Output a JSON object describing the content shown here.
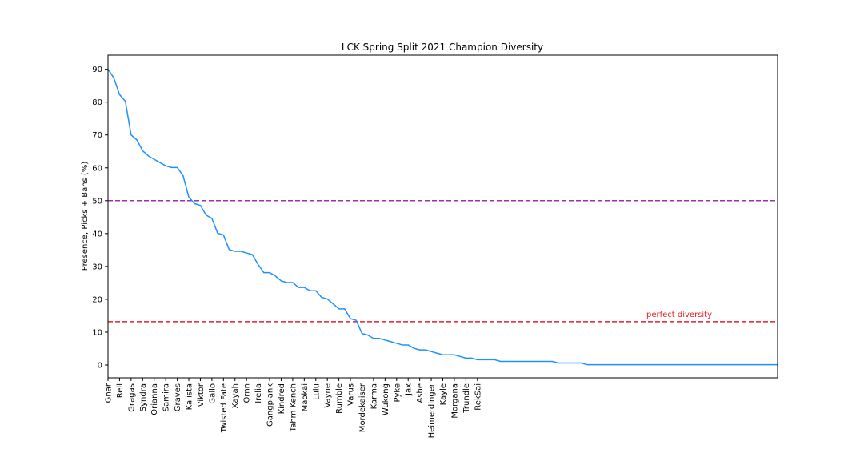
{
  "chart_data": {
    "type": "line",
    "title": "LCK Spring Split 2021 Champion Diversity",
    "xlabel": "",
    "ylabel": "Presence, Picks + Bans (%)",
    "ylim": [
      -3.9,
      94.3
    ],
    "yticks": [
      0,
      10,
      20,
      30,
      40,
      50,
      60,
      70,
      80,
      90
    ],
    "grid": false,
    "x_tick_labels": [
      "Gnar",
      "Rell",
      "Gragas",
      "Syndra",
      "Orianna",
      "Samira",
      "Graves",
      "Kalista",
      "Viktor",
      "Gallo",
      "Twisted Fate",
      "Xayah",
      "Ornn",
      "Irelia",
      "Gangplank",
      "Kindred",
      "Tahm Kench",
      "Maokai",
      "Lulu",
      "Vayne",
      "Rumble",
      "Varus",
      "Mordekaiser",
      "Karma",
      "Wukong",
      "Pyke",
      "Jax",
      "Ashe",
      "Heimerdinger",
      "Kayle",
      "Morgana",
      "Trundle",
      "RekSai"
    ],
    "tick_every": 2,
    "series": [
      {
        "color": "#1e90ff",
        "values": [
          90,
          87.4,
          82.3,
          80.3,
          70.0,
          68.5,
          65.2,
          63.6,
          62.6,
          61.6,
          60.6,
          60.1,
          60.1,
          57.6,
          51.1,
          49.1,
          48.6,
          45.6,
          44.6,
          40.1,
          39.6,
          35.1,
          34.6,
          34.6,
          34.1,
          33.6,
          30.6,
          28.1,
          28.1,
          27.1,
          25.6,
          25.1,
          25.1,
          23.6,
          23.6,
          22.6,
          22.6,
          20.6,
          20.1,
          18.6,
          17.1,
          17.1,
          14.1,
          13.6,
          9.6,
          9.1,
          8.1,
          8.1,
          7.6,
          7.1,
          6.6,
          6.1,
          6.1,
          5.1,
          4.6,
          4.6,
          4.1,
          3.6,
          3.1,
          3.1,
          3.1,
          2.6,
          2.1,
          2.1,
          1.6,
          1.6,
          1.6,
          1.6,
          1.1,
          1.1,
          1.1,
          1.1,
          1.1,
          1.1,
          1.1,
          1.1,
          1.1,
          1.1,
          0.6,
          0.6,
          0.6,
          0.6,
          0.6,
          0.1,
          0.1,
          0.1,
          0.1,
          0.1,
          0.1,
          0.1,
          0.1,
          0.1,
          0.1,
          0.1,
          0.1,
          0.1,
          0.1,
          0.1,
          0.1,
          0.1,
          0.1,
          0.1,
          0.1,
          0.1,
          0.1,
          0.1,
          0.1,
          0.1,
          0.1,
          0.1,
          0.1,
          0.1,
          0.1,
          0.1,
          0.1,
          0.1,
          0.1
        ]
      }
    ],
    "reference_lines": [
      {
        "y": 50,
        "color": "#9b30b0",
        "style": "dashed",
        "label": ""
      },
      {
        "y": 13.2,
        "color": "#e8202a",
        "style": "dashed",
        "label": "perfect diversity",
        "label_color": "#e8202a"
      }
    ]
  }
}
